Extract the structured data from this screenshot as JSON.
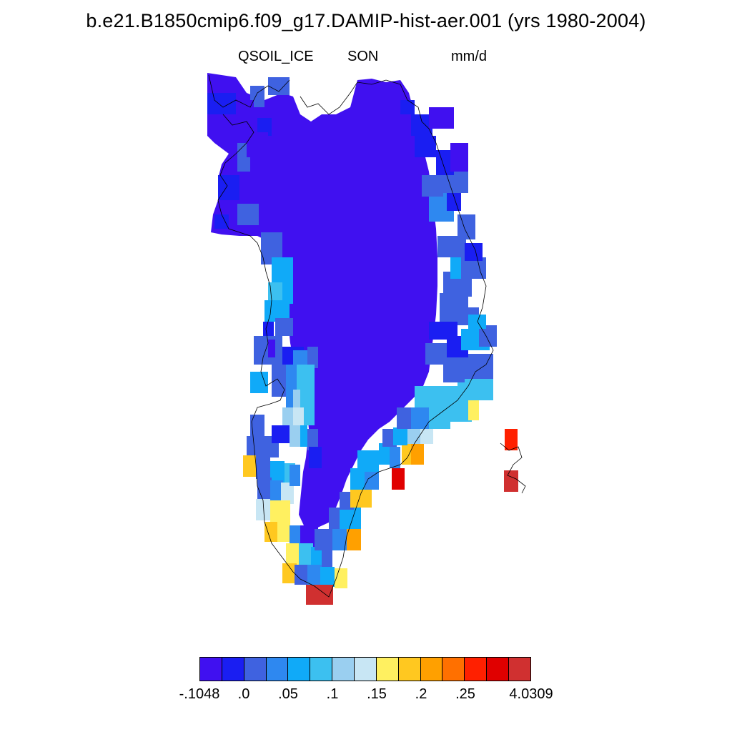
{
  "header": {
    "title": "b.e21.B1850cmip6.f09_g17.DAMIP-hist-aer.001 (yrs 1980-2004)",
    "variable": "QSOIL_ICE",
    "season": "SON",
    "units": "mm/d"
  },
  "colorbar": {
    "colors": [
      "#4010f0",
      "#1a1ef2",
      "#3f62e0",
      "#2e88f0",
      "#10aaf8",
      "#3cc0f0",
      "#9acff0",
      "#c8e6f4",
      "#fff060",
      "#ffc820",
      "#ffa000",
      "#ff7000",
      "#ff2000",
      "#e00000",
      "#d03030"
    ],
    "labels": [
      "-.1048",
      ".0",
      ".05",
      ".1",
      ".15",
      ".2",
      ".25",
      "4.0309"
    ]
  },
  "map_regions": {
    "interior_color": "#4010f0",
    "region": "Greenland"
  }
}
